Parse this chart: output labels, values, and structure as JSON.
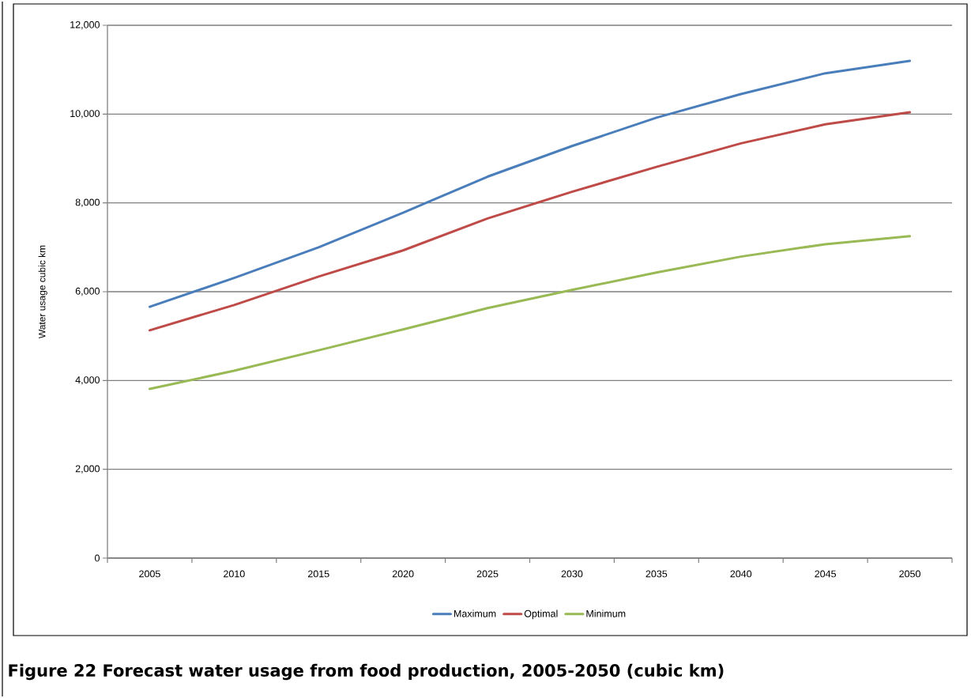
{
  "chart_data": {
    "type": "line",
    "title": "Figure 22 Forecast water usage from food production, 2005-2050 (cubic km)",
    "ylabel": "Water usage cubic km",
    "categories": [
      "2005",
      "2010",
      "2015",
      "2020",
      "2025",
      "2030",
      "2035",
      "2040",
      "2045",
      "2050"
    ],
    "series": [
      {
        "name": "Maximum",
        "color": "#4a7ebb",
        "values": [
          5660,
          6310,
          7000,
          7780,
          8590,
          9280,
          9920,
          10450,
          10920,
          11200
        ]
      },
      {
        "name": "Optimal",
        "color": "#be4b48",
        "values": [
          5130,
          5700,
          6340,
          6930,
          7650,
          8250,
          8810,
          9340,
          9770,
          10040
        ]
      },
      {
        "name": "Minimum",
        "color": "#98b954",
        "values": [
          3810,
          4220,
          4680,
          5150,
          5630,
          6040,
          6430,
          6790,
          7070,
          7250
        ]
      }
    ],
    "ylim": [
      0,
      12000
    ],
    "yticks": [
      {
        "value": 0,
        "label": "0"
      },
      {
        "value": 2000,
        "label": "2,000"
      },
      {
        "value": 4000,
        "label": "4,000"
      },
      {
        "value": 6000,
        "label": "6,000"
      },
      {
        "value": 8000,
        "label": "8,000"
      },
      {
        "value": 10000,
        "label": "10,000"
      },
      {
        "value": 12000,
        "label": "12,000"
      }
    ],
    "grid": "y",
    "legend": "bottom",
    "marker": "none",
    "line_style": "solid"
  }
}
